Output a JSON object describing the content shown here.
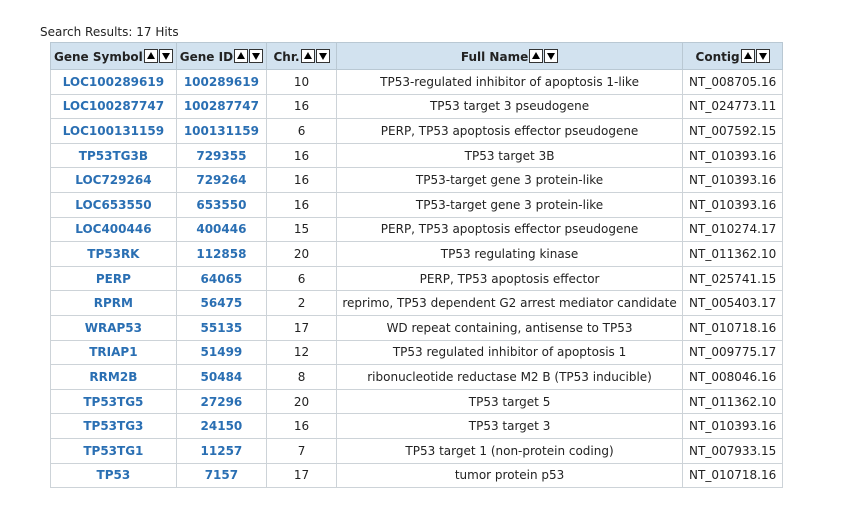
{
  "summary": {
    "label": "Search Results: 17 Hits"
  },
  "headers": [
    {
      "key": "gene",
      "label": "Gene Symbol"
    },
    {
      "key": "id",
      "label": "Gene ID"
    },
    {
      "key": "chr",
      "label": "Chr."
    },
    {
      "key": "name",
      "label": "Full Name"
    },
    {
      "key": "contig",
      "label": "Contig"
    }
  ],
  "sort_icons": {
    "up": "sort-ascending-icon",
    "down": "sort-descending-icon"
  },
  "colors": {
    "header_bg": "#d2e2ef",
    "link": "#2a6fb3",
    "border": "#cdd3d8"
  },
  "rows": [
    {
      "gene": "LOC100289619",
      "id": "100289619",
      "chr": "10",
      "name": "TP53-regulated inhibitor of apoptosis 1-like",
      "contig": "NT_008705.16"
    },
    {
      "gene": "LOC100287747",
      "id": "100287747",
      "chr": "16",
      "name": "TP53 target 3 pseudogene",
      "contig": "NT_024773.11"
    },
    {
      "gene": "LOC100131159",
      "id": "100131159",
      "chr": "6",
      "name": "PERP, TP53 apoptosis effector pseudogene",
      "contig": "NT_007592.15"
    },
    {
      "gene": "TP53TG3B",
      "id": "729355",
      "chr": "16",
      "name": "TP53 target 3B",
      "contig": "NT_010393.16"
    },
    {
      "gene": "LOC729264",
      "id": "729264",
      "chr": "16",
      "name": "TP53-target gene 3 protein-like",
      "contig": "NT_010393.16"
    },
    {
      "gene": "LOC653550",
      "id": "653550",
      "chr": "16",
      "name": "TP53-target gene 3 protein-like",
      "contig": "NT_010393.16"
    },
    {
      "gene": "LOC400446",
      "id": "400446",
      "chr": "15",
      "name": "PERP, TP53 apoptosis effector pseudogene",
      "contig": "NT_010274.17"
    },
    {
      "gene": "TP53RK",
      "id": "112858",
      "chr": "20",
      "name": "TP53 regulating kinase",
      "contig": "NT_011362.10"
    },
    {
      "gene": "PERP",
      "id": "64065",
      "chr": "6",
      "name": "PERP, TP53 apoptosis effector",
      "contig": "NT_025741.15"
    },
    {
      "gene": "RPRM",
      "id": "56475",
      "chr": "2",
      "name": "reprimo, TP53 dependent G2 arrest mediator candidate",
      "contig": "NT_005403.17"
    },
    {
      "gene": "WRAP53",
      "id": "55135",
      "chr": "17",
      "name": "WD repeat containing, antisense to TP53",
      "contig": "NT_010718.16"
    },
    {
      "gene": "TRIAP1",
      "id": "51499",
      "chr": "12",
      "name": "TP53 regulated inhibitor of apoptosis 1",
      "contig": "NT_009775.17"
    },
    {
      "gene": "RRM2B",
      "id": "50484",
      "chr": "8",
      "name": "ribonucleotide reductase M2 B (TP53 inducible)",
      "contig": "NT_008046.16"
    },
    {
      "gene": "TP53TG5",
      "id": "27296",
      "chr": "20",
      "name": "TP53 target 5",
      "contig": "NT_011362.10"
    },
    {
      "gene": "TP53TG3",
      "id": "24150",
      "chr": "16",
      "name": "TP53 target 3",
      "contig": "NT_010393.16"
    },
    {
      "gene": "TP53TG1",
      "id": "11257",
      "chr": "7",
      "name": "TP53 target 1 (non-protein coding)",
      "contig": "NT_007933.15"
    },
    {
      "gene": "TP53",
      "id": "7157",
      "chr": "17",
      "name": "tumor protein p53",
      "contig": "NT_010718.16"
    }
  ]
}
